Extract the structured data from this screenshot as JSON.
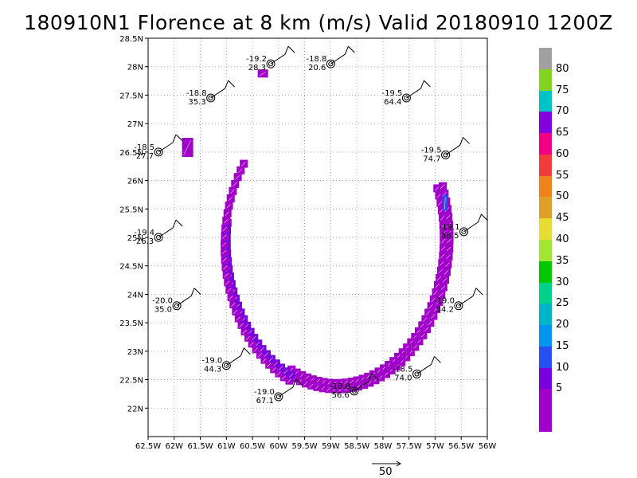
{
  "title": "180910N1 Florence at 8 km (m/s) Valid 20180910 1200Z",
  "map": {
    "lon_range": [
      -62.5,
      -56.0
    ],
    "lat_range": [
      21.5,
      28.5
    ],
    "grid": true,
    "x_ticks": [
      "62.5W",
      "62W",
      "61.5W",
      "61W",
      "60.5W",
      "60W",
      "59.5W",
      "59W",
      "58.5W",
      "58W",
      "57.5W",
      "57W",
      "56.5W",
      "56W"
    ],
    "y_ticks": [
      "28.5N",
      "28N",
      "27.5N",
      "27N",
      "26.5N",
      "26N",
      "25.5N",
      "25N",
      "24.5N",
      "24N",
      "23.5N",
      "23N",
      "22.5N",
      "22N"
    ]
  },
  "dropsondes": [
    {
      "lon": -60.15,
      "lat": 28.05,
      "temp": "-19.2",
      "wind": "28.3"
    },
    {
      "lon": -59.0,
      "lat": 28.05,
      "temp": "-18.8",
      "wind": "20.6"
    },
    {
      "lon": -61.3,
      "lat": 27.45,
      "temp": "-18.8",
      "wind": "35.3"
    },
    {
      "lon": -57.55,
      "lat": 27.45,
      "temp": "-19.5",
      "wind": "64.4"
    },
    {
      "lon": -62.3,
      "lat": 26.5,
      "temp": "-18.5",
      "wind": "27.7"
    },
    {
      "lon": -56.8,
      "lat": 26.45,
      "temp": "-19.5",
      "wind": "74.7"
    },
    {
      "lon": -62.3,
      "lat": 25.0,
      "temp": "-19.4",
      "wind": "26.3"
    },
    {
      "lon": -56.45,
      "lat": 25.1,
      "temp": "-19.1",
      "wind": "66.5"
    },
    {
      "lon": -61.95,
      "lat": 23.8,
      "temp": "-20.0",
      "wind": "35.0"
    },
    {
      "lon": -56.55,
      "lat": 23.8,
      "temp": "-19.0",
      "wind": "54.2"
    },
    {
      "lon": -61.0,
      "lat": 22.75,
      "temp": "-19.0",
      "wind": "44.3"
    },
    {
      "lon": -57.35,
      "lat": 22.6,
      "temp": "-18.5",
      "wind": "74.0"
    },
    {
      "lon": -60.0,
      "lat": 22.2,
      "temp": "-19.0",
      "wind": "67.1"
    },
    {
      "lon": -58.55,
      "lat": 22.3,
      "temp": "-18.8",
      "wind": "56.6"
    }
  ],
  "colorbar": {
    "labels": [
      "80",
      "75",
      "70",
      "65",
      "60",
      "55",
      "50",
      "45",
      "40",
      "35",
      "30",
      "25",
      "20",
      "15",
      "10",
      "5"
    ],
    "colors": {
      "85": "#a0a0a0",
      "80": "#82d41e",
      "75": "#00c3c8",
      "70": "#8200dc",
      "65": "#f00082",
      "60": "#f03c3c",
      "55": "#f0821e",
      "50": "#dca028",
      "45": "#e6dc32",
      "40": "#a0e632",
      "35": "#00c800",
      "30": "#00d28c",
      "25": "#00b4c8",
      "20": "#0096f0",
      "15": "#2850f0",
      "10": "#7800dc",
      "5": "#a000c8",
      "0": "#a000c8"
    }
  },
  "reference_vector": {
    "label": "50"
  }
}
